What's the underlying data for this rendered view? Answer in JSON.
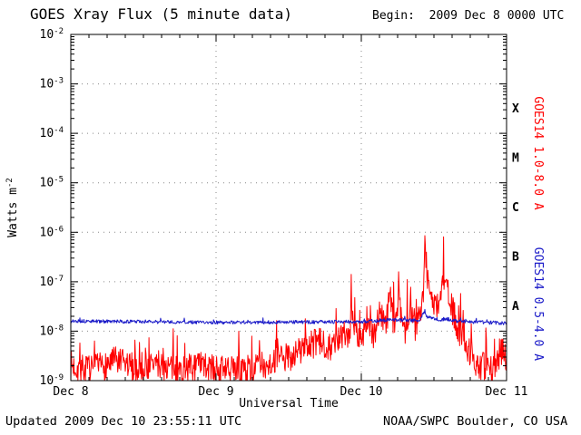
{
  "header": {
    "title": "GOES Xray Flux (5 minute data)",
    "begin": "Begin:  2009 Dec 8 0000 UTC"
  },
  "footer": {
    "updated": "Updated 2009 Dec 10 23:55:11 UTC",
    "source": "NOAA/SWPC Boulder, CO USA"
  },
  "colors": {
    "long_channel": "#ff0000",
    "short_channel": "#1a1ac8",
    "grid": "#888888",
    "axis": "#000000",
    "background": "#ffffff"
  },
  "chart_data": {
    "type": "line",
    "title": "GOES Xray Flux (5 minute data)",
    "xlabel": "Universal Time",
    "ylabel": "Watts m^-2",
    "x_ticks": [
      "Dec 8",
      "Dec 9",
      "Dec 10",
      "Dec 11"
    ],
    "x_tick_days": [
      0,
      1,
      2,
      3
    ],
    "xlim_days": [
      0,
      3
    ],
    "ylim_log10": [
      -9,
      -2
    ],
    "y_tick_exponents": [
      -2,
      -3,
      -4,
      -5,
      -6,
      -7,
      -8,
      -9
    ],
    "grid": "dotted, horizontal at each decade, vertical at day boundaries",
    "sample_minutes": 5,
    "flare_class_labels": [
      {
        "label": "X",
        "log10_mid": -3.5
      },
      {
        "label": "M",
        "log10_mid": -4.5
      },
      {
        "label": "C",
        "log10_mid": -5.5
      },
      {
        "label": "B",
        "log10_mid": -6.5
      },
      {
        "label": "A",
        "log10_mid": -7.5
      }
    ],
    "right_axis_labels": [
      {
        "text": "GOES14 1.0-8.0 A",
        "color": "#ff0000",
        "center_log10": -4.4
      },
      {
        "text": "GOES14 0.5-4.0 A",
        "color": "#1a1ac8",
        "center_log10": -7.45
      }
    ],
    "series": [
      {
        "name": "GOES14 1.0-8.0 A",
        "color": "#ff0000",
        "noise_log10": 0.3,
        "spike_prob": 0.06,
        "spike_extra_log10": 0.45,
        "seed": 7,
        "keypoints": [
          [
            0.0,
            2e-09
          ],
          [
            0.15,
            1.6e-09
          ],
          [
            0.3,
            2.5e-09
          ],
          [
            0.45,
            1.8e-09
          ],
          [
            0.6,
            2.2e-09
          ],
          [
            0.75,
            1.6e-09
          ],
          [
            0.9,
            2e-09
          ],
          [
            1.05,
            1.5e-09
          ],
          [
            1.2,
            1.6e-09
          ],
          [
            1.35,
            2.2e-09
          ],
          [
            1.5,
            3e-09
          ],
          [
            1.6,
            4.5e-09
          ],
          [
            1.7,
            6e-09
          ],
          [
            1.8,
            5e-09
          ],
          [
            1.875,
            8e-09
          ],
          [
            1.924,
            1e-08
          ],
          [
            1.9306,
            1.8e-07
          ],
          [
            1.938,
            1.6e-08
          ],
          [
            1.97,
            9e-09
          ],
          [
            2.0,
            7e-09
          ],
          [
            2.04,
            1.8e-08
          ],
          [
            2.08,
            8e-09
          ],
          [
            2.13,
            2.5e-08
          ],
          [
            2.17,
            1.2e-08
          ],
          [
            2.2,
            6e-08
          ],
          [
            2.22,
            1.5e-08
          ],
          [
            2.26,
            3.5e-08
          ],
          [
            2.3,
            1e-08
          ],
          [
            2.34,
            4e-08
          ],
          [
            2.37,
            1.2e-08
          ],
          [
            2.4,
            2.5e-08
          ],
          [
            2.43,
            6e-08
          ],
          [
            2.4375,
            1.6e-06
          ],
          [
            2.445,
            2.5e-07
          ],
          [
            2.46,
            9e-08
          ],
          [
            2.49,
            4e-08
          ],
          [
            2.52,
            3e-08
          ],
          [
            2.555,
            8e-08
          ],
          [
            2.575,
            1.3e-07
          ],
          [
            2.6,
            5e-08
          ],
          [
            2.64,
            2e-08
          ],
          [
            2.68,
            9e-09
          ],
          [
            2.72,
            5e-09
          ],
          [
            2.76,
            3.5e-09
          ],
          [
            2.8,
            2.2e-09
          ],
          [
            2.85,
            1.8e-09
          ],
          [
            2.9,
            1.5e-09
          ],
          [
            2.94,
            2.5e-09
          ],
          [
            2.97,
            4e-09
          ],
          [
            3.0,
            3e-09
          ]
        ]
      },
      {
        "name": "GOES14 0.5-4.0 A",
        "color": "#1a1ac8",
        "noise_log10": 0.035,
        "spike_prob": 0.02,
        "spike_extra_log10": 0.05,
        "seed": 13,
        "keypoints": [
          [
            0.0,
            1.6e-08
          ],
          [
            1.0,
            1.5e-08
          ],
          [
            2.0,
            1.55e-08
          ],
          [
            2.2,
            1.7e-08
          ],
          [
            2.4,
            1.65e-08
          ],
          [
            2.4375,
            2.6e-08
          ],
          [
            2.45,
            1.9e-08
          ],
          [
            2.55,
            1.7e-08
          ],
          [
            2.58,
            1.8e-08
          ],
          [
            2.65,
            1.6e-08
          ],
          [
            3.0,
            1.45e-08
          ]
        ]
      }
    ]
  }
}
